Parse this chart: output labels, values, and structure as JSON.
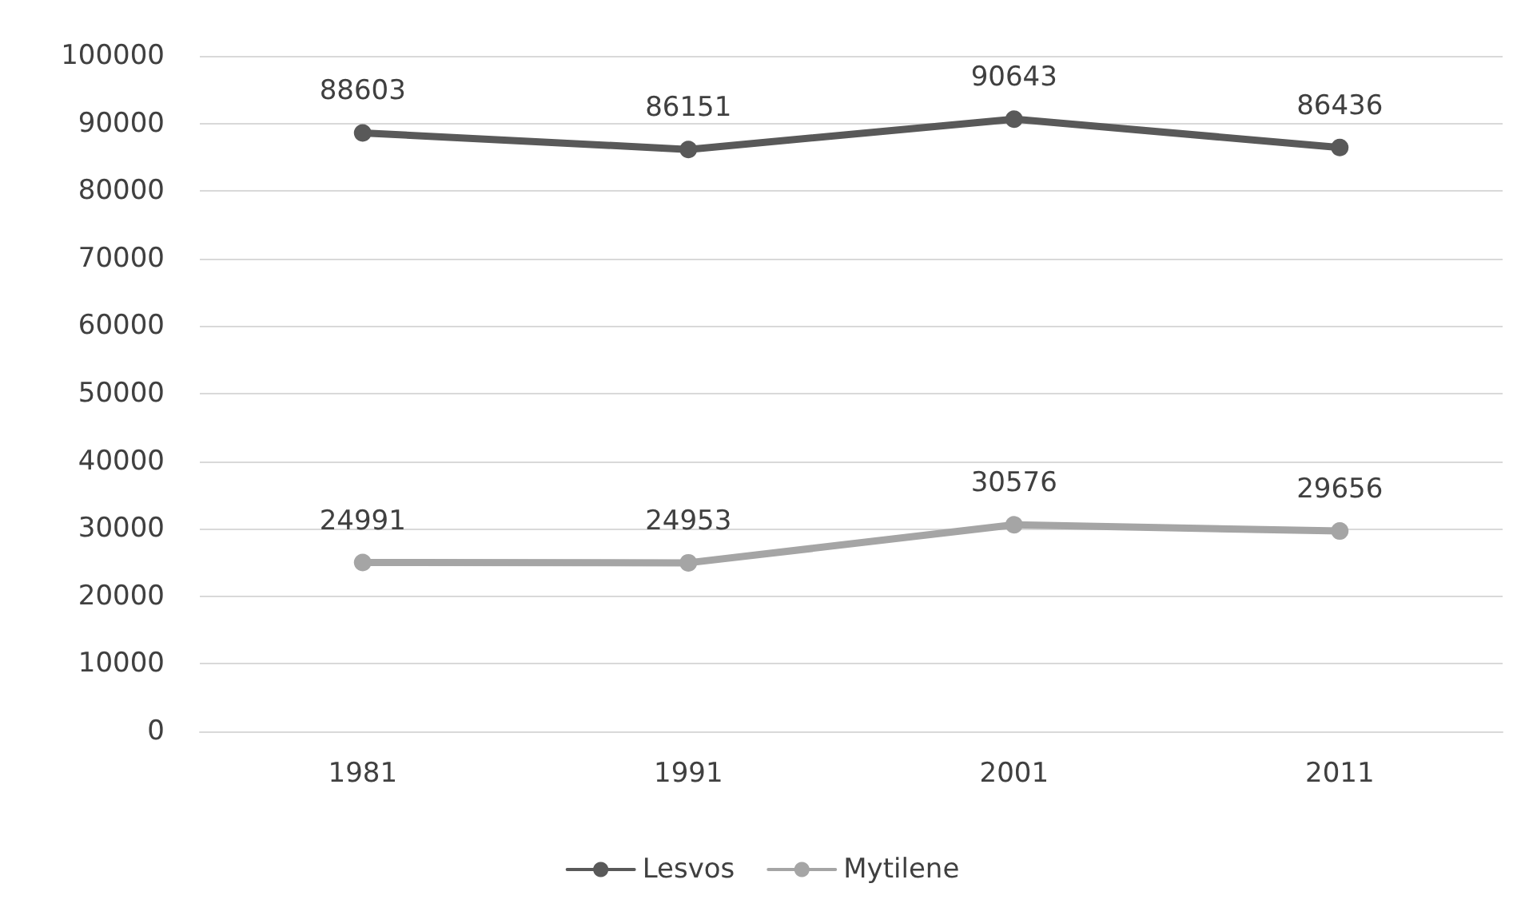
{
  "chart_data": {
    "type": "line",
    "categories": [
      "1981",
      "1991",
      "2001",
      "2011"
    ],
    "series": [
      {
        "name": "Lesvos",
        "color": "#595959",
        "values": [
          88603,
          86151,
          90643,
          86436
        ]
      },
      {
        "name": "Mytilene",
        "color": "#a5a5a5",
        "values": [
          24991,
          24953,
          30576,
          29656
        ]
      }
    ],
    "ylim": [
      0,
      100000
    ],
    "yticks": [
      0,
      10000,
      20000,
      30000,
      40000,
      50000,
      60000,
      70000,
      80000,
      90000,
      100000
    ],
    "grid": "y",
    "legend": "bottom",
    "data_labels": true,
    "marker": "circle",
    "line_style": "solid"
  }
}
